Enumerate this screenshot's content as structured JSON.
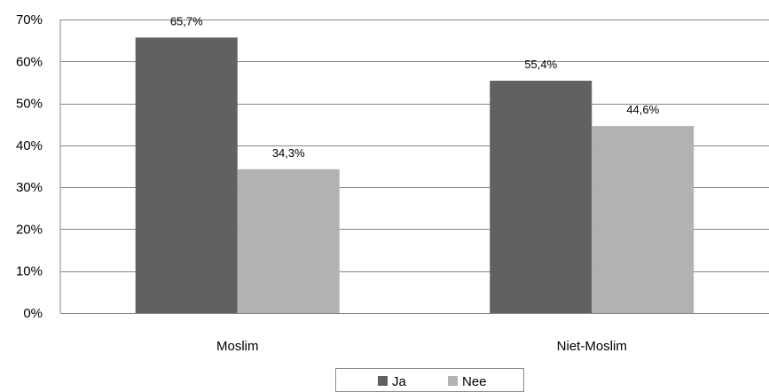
{
  "chart_data": {
    "type": "bar",
    "categories": [
      "Moslim",
      "Niet-Moslim"
    ],
    "series": [
      {
        "name": "Ja",
        "values": [
          65.7,
          55.4
        ],
        "labels": [
          "65,7%",
          "55,4%"
        ],
        "color": "#616161"
      },
      {
        "name": "Nee",
        "values": [
          34.3,
          44.6
        ],
        "labels": [
          "34,3%",
          "44,6%"
        ],
        "color": "#b2b2b2"
      }
    ],
    "ylim": [
      0,
      70
    ],
    "yticks": [
      0,
      10,
      20,
      30,
      40,
      50,
      60,
      70
    ],
    "ytick_labels": [
      "0%",
      "10%",
      "20%",
      "30%",
      "40%",
      "50%",
      "60%",
      "70%"
    ],
    "grid": true,
    "legend_position": "bottom"
  }
}
